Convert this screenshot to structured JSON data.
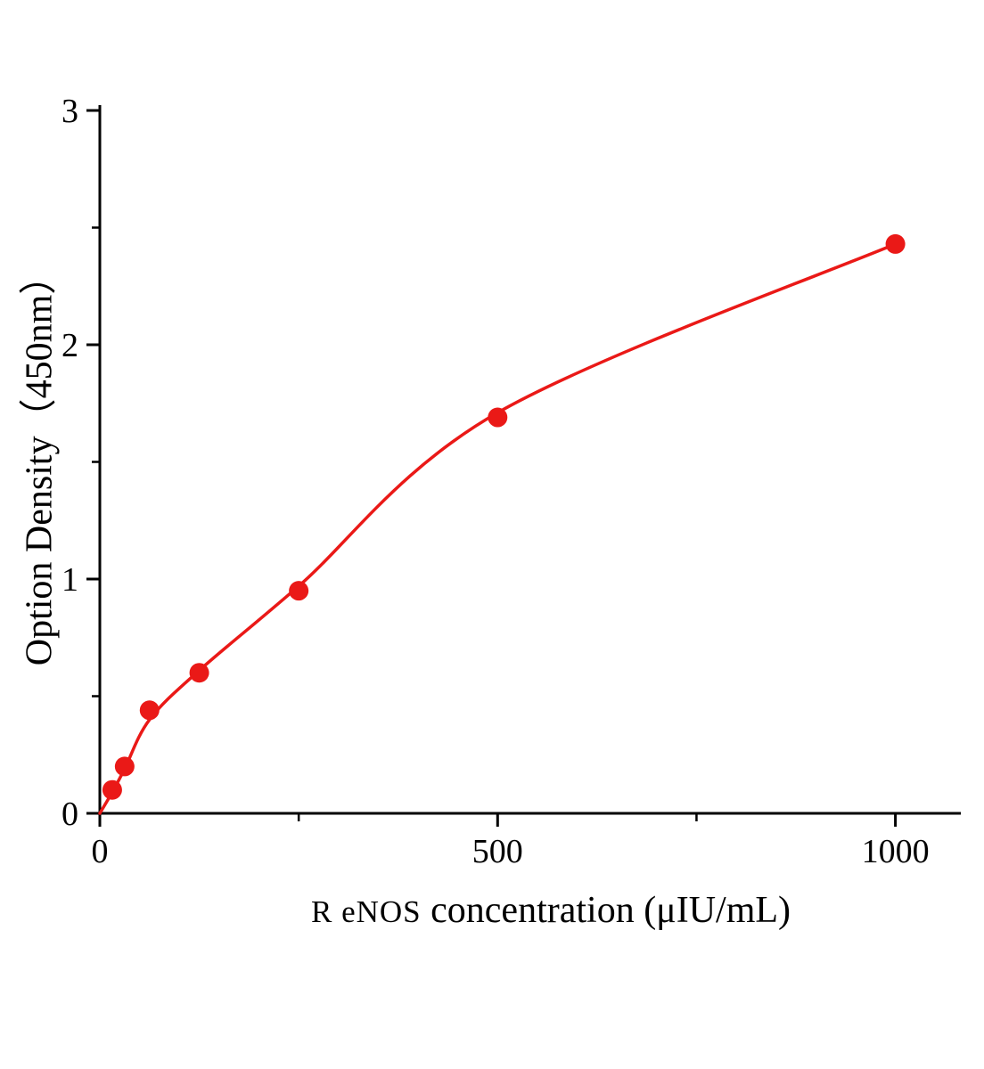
{
  "chart_data": {
    "type": "scatter",
    "title": "",
    "xlabel_prefix": "R eNOS",
    "xlabel_main": " concentration (μIU/mL)",
    "ylabel": "Option Density（450nm）",
    "x": [
      15.6,
      31.2,
      62.5,
      125,
      250,
      500,
      1000
    ],
    "y": [
      0.1,
      0.2,
      0.44,
      0.6,
      0.95,
      1.69,
      2.43
    ],
    "curve_x": [
      0,
      15.6,
      31.2,
      62.5,
      125,
      250,
      500,
      1000
    ],
    "curve_y": [
      0,
      0.09,
      0.19,
      0.4,
      0.61,
      0.97,
      1.71,
      2.43
    ],
    "xlim": [
      0,
      1080
    ],
    "ylim": [
      0,
      3
    ],
    "xticks": [
      0,
      500,
      1000
    ],
    "xtick_labels": [
      "0",
      "500",
      "1000"
    ],
    "xticks_minor": [
      250,
      750
    ],
    "yticks": [
      0,
      1,
      2,
      3
    ],
    "ytick_labels": [
      "0",
      "1",
      "2",
      "3"
    ],
    "yticks_minor": [
      0.5,
      1.5,
      2.5
    ],
    "grid": false,
    "legend": "none",
    "point_color": "#ea1917",
    "line_color": "#ea1917",
    "axis_color": "#000000"
  }
}
